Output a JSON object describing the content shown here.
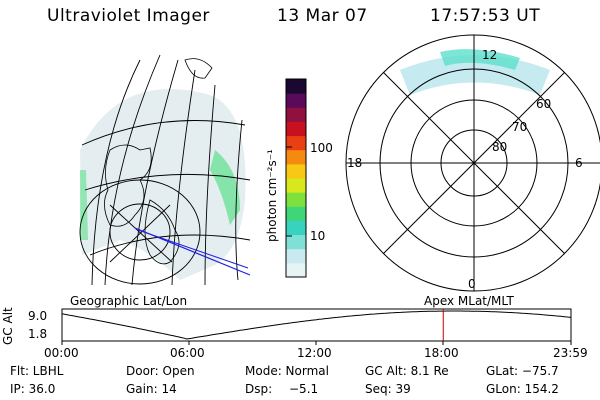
{
  "header": {
    "instrument": "Ultraviolet Imager",
    "date": "13 Mar 07",
    "time": "17:57:53 UT"
  },
  "geographic_panel": {
    "label": "Geographic Lat/Lon"
  },
  "apex_panel": {
    "label": "Apex MLat/MLT",
    "mlt_labels": [
      "12",
      "18",
      "6",
      "0"
    ],
    "mlat_labels": [
      "60",
      "70",
      "80"
    ]
  },
  "colorbar": {
    "unit": "photon cm⁻²s⁻¹",
    "ticks": [
      {
        "label": "100",
        "value": 100
      },
      {
        "label": "10",
        "value": 10
      }
    ],
    "scale": "log",
    "colors": [
      "#e6f4f4",
      "#c8eaf0",
      "#7fe0d8",
      "#37d2c0",
      "#3fd67a",
      "#7ee03c",
      "#d8e81e",
      "#f7c814",
      "#f58a10",
      "#e84014",
      "#c81020",
      "#901040",
      "#5a0a5a",
      "#1a0830"
    ]
  },
  "altitude_plot": {
    "ylabel": "GC Alt",
    "yticks": [
      "9.0",
      "1.8"
    ],
    "xticks": [
      "00:00",
      "06:00",
      "12:00",
      "18:00",
      "23:59"
    ],
    "current_time_fraction": 0.749,
    "current_time_color": "#c00000",
    "curve_color": "#000000"
  },
  "footer": {
    "row1": {
      "filter": "Flt: LBHL",
      "door": "Door: Open",
      "mode": "Mode: Normal",
      "gc_alt": "GC Alt: 8.1 Re",
      "glat": "GLat: −75.7"
    },
    "row2": {
      "ip": "IP: 36.0",
      "gain": "Gain: 14",
      "dsp_label": "Dsp:",
      "dsp_value": "−5.1",
      "seq": "Seq: 39",
      "glon": "GLon: 154.2"
    }
  }
}
